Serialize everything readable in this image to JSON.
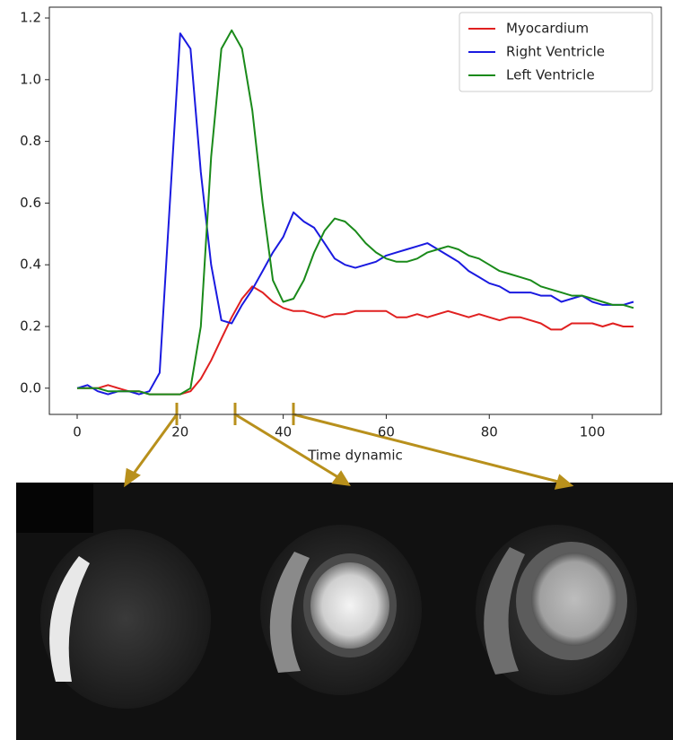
{
  "chart_data": {
    "type": "line",
    "xlabel": "Time dynamic",
    "x": [
      0,
      2,
      4,
      6,
      8,
      10,
      12,
      14,
      16,
      18,
      20,
      22,
      24,
      26,
      28,
      30,
      32,
      34,
      36,
      38,
      40,
      42,
      44,
      46,
      48,
      50,
      52,
      54,
      56,
      58,
      60,
      62,
      64,
      66,
      68,
      70,
      72,
      74,
      76,
      78,
      80,
      82,
      84,
      86,
      88,
      90,
      92,
      94,
      96,
      98,
      100,
      102,
      104,
      106,
      108
    ],
    "series": [
      {
        "name": "Myocardium",
        "color": "#e02020",
        "values": [
          0.0,
          0.0,
          0.0,
          0.01,
          0.0,
          -0.01,
          -0.01,
          -0.02,
          -0.02,
          -0.02,
          -0.02,
          -0.01,
          0.03,
          0.09,
          0.16,
          0.23,
          0.29,
          0.33,
          0.31,
          0.28,
          0.26,
          0.25,
          0.25,
          0.24,
          0.23,
          0.24,
          0.24,
          0.25,
          0.25,
          0.25,
          0.25,
          0.23,
          0.23,
          0.24,
          0.23,
          0.24,
          0.25,
          0.24,
          0.23,
          0.24,
          0.23,
          0.22,
          0.23,
          0.23,
          0.22,
          0.21,
          0.19,
          0.19,
          0.21,
          0.21,
          0.21,
          0.2,
          0.21,
          0.2,
          0.2
        ]
      },
      {
        "name": "Right Ventricle",
        "color": "#1a1ae0",
        "values": [
          0.0,
          0.01,
          -0.01,
          -0.02,
          -0.01,
          -0.01,
          -0.02,
          -0.01,
          0.05,
          0.6,
          1.15,
          1.1,
          0.7,
          0.4,
          0.22,
          0.21,
          0.27,
          0.32,
          0.38,
          0.44,
          0.49,
          0.57,
          0.54,
          0.52,
          0.47,
          0.42,
          0.4,
          0.39,
          0.4,
          0.41,
          0.43,
          0.44,
          0.45,
          0.46,
          0.47,
          0.45,
          0.43,
          0.41,
          0.38,
          0.36,
          0.34,
          0.33,
          0.31,
          0.31,
          0.31,
          0.3,
          0.3,
          0.28,
          0.29,
          0.3,
          0.28,
          0.27,
          0.27,
          0.27,
          0.28
        ]
      },
      {
        "name": "Left Ventricle",
        "color": "#1a8a1a",
        "values": [
          0.0,
          0.0,
          0.0,
          -0.01,
          -0.01,
          -0.01,
          -0.01,
          -0.02,
          -0.02,
          -0.02,
          -0.02,
          0.0,
          0.2,
          0.75,
          1.1,
          1.16,
          1.1,
          0.9,
          0.6,
          0.35,
          0.28,
          0.29,
          0.35,
          0.44,
          0.51,
          0.55,
          0.54,
          0.51,
          0.47,
          0.44,
          0.42,
          0.41,
          0.41,
          0.42,
          0.44,
          0.45,
          0.46,
          0.45,
          0.43,
          0.42,
          0.4,
          0.38,
          0.37,
          0.36,
          0.35,
          0.33,
          0.32,
          0.31,
          0.3,
          0.3,
          0.29,
          0.28,
          0.27,
          0.27,
          0.26
        ]
      }
    ],
    "xlim": [
      -5.4,
      113.4
    ],
    "xticks": [
      0,
      20,
      40,
      60,
      80,
      100
    ],
    "ylim": [
      -0.085,
      1.235
    ],
    "yticks": [
      {
        "value": 0,
        "label": "0.0"
      },
      0.2,
      0.4,
      0.6,
      0.8,
      {
        "value": 1,
        "label": "1.0"
      },
      1.2
    ],
    "legend": "upper right"
  }
}
